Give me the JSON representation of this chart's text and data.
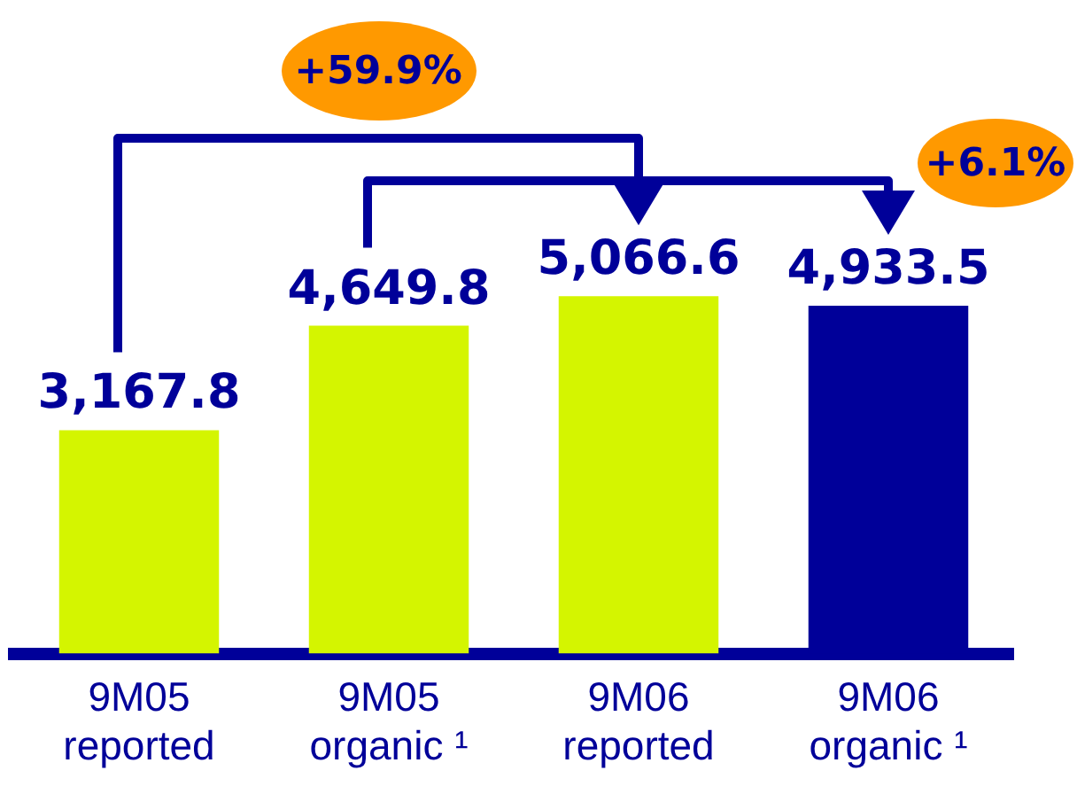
{
  "chart_data": {
    "type": "bar",
    "categories": [
      "9M05 reported",
      "9M05 organic ¹",
      "9M06 reported",
      "9M06 organic ¹"
    ],
    "values": [
      3167.8,
      4649.8,
      5066.6,
      4933.5
    ],
    "value_labels": [
      "3,167.8",
      "4,649.8",
      "5,066.6",
      "4,933.5"
    ],
    "colors": [
      "#d4f500",
      "#d4f500",
      "#d4f500",
      "#000099"
    ],
    "tick_labels": "x",
    "grid": false,
    "legend": false,
    "annotations": [
      "+59.9%",
      "+6.1%"
    ]
  }
}
